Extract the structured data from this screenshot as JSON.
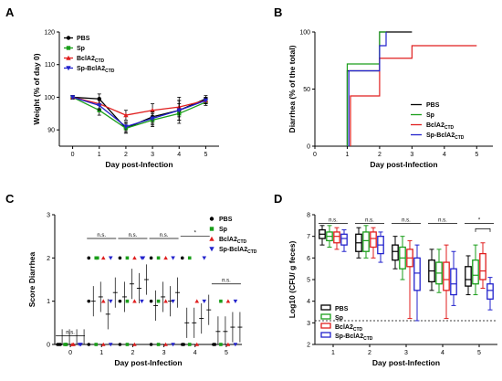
{
  "colors": {
    "PBS": "#000000",
    "Sp": "#1a9e1a",
    "BclA2CTD": "#e01e1e",
    "Sp-BclA2CTD": "#2222cc"
  },
  "legend": [
    {
      "key": "PBS",
      "label": "PBS",
      "sub": ""
    },
    {
      "key": "Sp",
      "label": "Sp",
      "sub": ""
    },
    {
      "key": "BclA2CTD",
      "label": "BclA2",
      "sub": "CTD"
    },
    {
      "key": "Sp-BclA2CTD",
      "label": "Sp-BclA2",
      "sub": "CTD"
    }
  ],
  "panels": {
    "A": {
      "letter": "A"
    },
    "B": {
      "letter": "B"
    },
    "C": {
      "letter": "C"
    },
    "D": {
      "letter": "D"
    }
  },
  "annotations": {
    "ns": "n.s.",
    "star": "*",
    "d_lod": "dashed line = detection limit"
  },
  "chart_data": [
    {
      "panel": "A",
      "type": "line",
      "xlabel": "Day post-Infection",
      "ylabel": "Weight (% of day 0)",
      "x": [
        0,
        1,
        2,
        3,
        4,
        5
      ],
      "xticks": [
        "0",
        "1",
        "2",
        "3",
        "4",
        "5"
      ],
      "ylim": [
        85,
        120
      ],
      "yticks": [
        "90",
        "100",
        "110",
        "120"
      ],
      "series": [
        {
          "name": "PBS",
          "values": [
            100,
            99.5,
            90.5,
            94,
            96,
            99.5
          ],
          "err": [
            0.5,
            1.5,
            1.5,
            2,
            3,
            1
          ]
        },
        {
          "name": "Sp",
          "values": [
            100,
            96,
            90.5,
            93,
            95,
            98.5
          ],
          "err": [
            0.5,
            1.5,
            1.5,
            2,
            3,
            1
          ]
        },
        {
          "name": "BclA2CTD",
          "values": [
            100,
            98,
            94.5,
            96,
            97,
            99
          ],
          "err": [
            0.5,
            1.5,
            1.5,
            2,
            3,
            1
          ]
        },
        {
          "name": "Sp-BclA2CTD",
          "values": [
            100,
            97.5,
            91,
            93.5,
            96,
            99
          ],
          "err": [
            0.5,
            1.5,
            1.5,
            2,
            3,
            1
          ]
        }
      ]
    },
    {
      "panel": "B",
      "type": "line",
      "xlabel": "Day post-Infection",
      "ylabel": "Diarrhea (% of the total)",
      "x": [
        0,
        1,
        2,
        3,
        4,
        5
      ],
      "xticks": [
        "0",
        "1",
        "2",
        "3",
        "4",
        "5"
      ],
      "ylim": [
        0,
        100
      ],
      "yticks": [
        "0",
        "50",
        "100"
      ],
      "series": [
        {
          "name": "PBS",
          "steps": [
            [
              1.0,
              0
            ],
            [
              1.0,
              66
            ],
            [
              2.0,
              66
            ],
            [
              2.0,
              100
            ],
            [
              3.0,
              100
            ]
          ]
        },
        {
          "name": "Sp",
          "steps": [
            [
              1.0,
              0
            ],
            [
              1.0,
              72
            ],
            [
              2.0,
              72
            ],
            [
              2.0,
              100
            ],
            [
              2.2,
              100
            ]
          ]
        },
        {
          "name": "BclA2CTD",
          "steps": [
            [
              1.1,
              0
            ],
            [
              1.1,
              44
            ],
            [
              2.0,
              44
            ],
            [
              2.0,
              77
            ],
            [
              3.0,
              77
            ],
            [
              3.0,
              88
            ],
            [
              5.0,
              88
            ]
          ]
        },
        {
          "name": "Sp-BclA2CTD",
          "steps": [
            [
              1.05,
              0
            ],
            [
              1.05,
              66
            ],
            [
              2.0,
              66
            ],
            [
              2.0,
              88
            ],
            [
              2.2,
              88
            ],
            [
              2.2,
              100
            ]
          ]
        }
      ]
    },
    {
      "panel": "C",
      "type": "scatter",
      "xlabel": "Day post-Infection",
      "ylabel": "Score Diarrhea",
      "x": [
        0,
        1,
        2,
        3,
        4,
        5
      ],
      "xticks": [
        "0",
        "1",
        "2",
        "3",
        "4",
        "5"
      ],
      "ylim": [
        0,
        3
      ],
      "yticks": [
        "0",
        "1",
        "2",
        "3"
      ],
      "significance": [
        "n.s.",
        "n.s.",
        "n.s.",
        "n.s.",
        "*",
        "n.s."
      ],
      "series": [
        {
          "name": "PBS",
          "points": [
            [
              0,
              0
            ],
            [
              0,
              0
            ],
            [
              0,
              0
            ],
            [
              1,
              2
            ],
            [
              1,
              1
            ],
            [
              1,
              0
            ],
            [
              2,
              2
            ],
            [
              2,
              1
            ],
            [
              2,
              0
            ],
            [
              3,
              2
            ],
            [
              3,
              1
            ],
            [
              3,
              0
            ],
            [
              4,
              2
            ],
            [
              4,
              0
            ],
            [
              4,
              0
            ],
            [
              5,
              0
            ],
            [
              5,
              0
            ]
          ]
        },
        {
          "name": "Sp",
          "points": [
            [
              0,
              0
            ],
            [
              0,
              0
            ],
            [
              1,
              2
            ],
            [
              1,
              2
            ],
            [
              1,
              0
            ],
            [
              2,
              2
            ],
            [
              2,
              1
            ],
            [
              2,
              0
            ],
            [
              3,
              2
            ],
            [
              3,
              1
            ],
            [
              3,
              0
            ],
            [
              4,
              2
            ],
            [
              4,
              0
            ],
            [
              5,
              1
            ],
            [
              5,
              0
            ]
          ]
        },
        {
          "name": "BclA2CTD",
          "points": [
            [
              0,
              0
            ],
            [
              0,
              0
            ],
            [
              1,
              2
            ],
            [
              1,
              1
            ],
            [
              1,
              0
            ],
            [
              2,
              2
            ],
            [
              2,
              1
            ],
            [
              2,
              0
            ],
            [
              3,
              2
            ],
            [
              3,
              1
            ],
            [
              3,
              0
            ],
            [
              4,
              1
            ],
            [
              4,
              0
            ],
            [
              5,
              1
            ],
            [
              5,
              0
            ]
          ]
        },
        {
          "name": "Sp-BclA2CTD",
          "points": [
            [
              0,
              0
            ],
            [
              0,
              0
            ],
            [
              1,
              2
            ],
            [
              1,
              1
            ],
            [
              1,
              0
            ],
            [
              2,
              2
            ],
            [
              2,
              2
            ],
            [
              2,
              1
            ],
            [
              3,
              2
            ],
            [
              3,
              1
            ],
            [
              3,
              0
            ],
            [
              4,
              2
            ],
            [
              4,
              1
            ],
            [
              5,
              1
            ],
            [
              5,
              0
            ]
          ]
        }
      ],
      "means": {
        "PBS": [
          [
            0,
            0
          ],
          [
            1,
            1.0
          ],
          [
            2,
            1.1
          ],
          [
            3,
            0.9
          ],
          [
            4,
            0.5
          ],
          [
            5,
            0.3
          ]
        ],
        "Sp": [
          [
            0,
            0
          ],
          [
            1,
            1.1
          ],
          [
            2,
            1.4
          ],
          [
            3,
            1.1
          ],
          [
            4,
            0.5
          ],
          [
            5,
            0.3
          ]
        ],
        "BclA2CTD": [
          [
            0,
            0
          ],
          [
            1,
            0.7
          ],
          [
            2,
            1.3
          ],
          [
            3,
            1.0
          ],
          [
            4,
            0.6
          ],
          [
            5,
            0.4
          ]
        ],
        "Sp-BclA2CTD": [
          [
            0,
            0
          ],
          [
            1,
            1.2
          ],
          [
            2,
            1.5
          ],
          [
            3,
            1.2
          ],
          [
            4,
            0.8
          ],
          [
            5,
            0.4
          ]
        ]
      }
    },
    {
      "panel": "D",
      "type": "box",
      "xlabel": "Day post-Infection",
      "ylabel": "Log10 (CFU/ g feces)",
      "x": [
        1,
        2,
        3,
        4,
        5
      ],
      "xticks": [
        "1",
        "2",
        "3",
        "4",
        "5"
      ],
      "ylim": [
        2,
        8
      ],
      "yticks": [
        "2",
        "3",
        "4",
        "5",
        "6",
        "7",
        "8"
      ],
      "detection_limit": 3.1,
      "significance": [
        "n.s.",
        "n.s.",
        "n.s.",
        "n.s.",
        "*"
      ],
      "series": [
        {
          "name": "PBS",
          "boxes": [
            [
              6.6,
              6.9,
              7.1,
              7.3,
              7.5
            ],
            [
              6.0,
              6.3,
              6.7,
              7.1,
              7.4
            ],
            [
              5.5,
              5.9,
              6.3,
              6.6,
              7.0
            ],
            [
              4.5,
              4.9,
              5.4,
              5.9,
              6.4
            ],
            [
              4.3,
              4.7,
              5.0,
              5.6,
              6.1
            ]
          ]
        },
        {
          "name": "Sp",
          "boxes": [
            [
              6.5,
              6.8,
              7.0,
              7.2,
              7.5
            ],
            [
              6.0,
              6.3,
              6.8,
              7.2,
              7.5
            ],
            [
              5.0,
              5.5,
              6.0,
              6.5,
              7.0
            ],
            [
              4.4,
              4.8,
              5.3,
              5.8,
              6.4
            ],
            [
              4.3,
              4.8,
              5.2,
              5.9,
              6.6
            ]
          ]
        },
        {
          "name": "BclA2CTD",
          "boxes": [
            [
              6.4,
              6.7,
              7.0,
              7.2,
              7.4
            ],
            [
              6.0,
              6.5,
              6.9,
              7.2,
              7.4
            ],
            [
              3.2,
              5.6,
              6.0,
              6.4,
              6.8
            ],
            [
              3.2,
              4.5,
              5.0,
              5.8,
              6.6
            ],
            [
              4.6,
              5.0,
              5.4,
              6.2,
              6.7
            ]
          ]
        },
        {
          "name": "Sp-BclA2CTD",
          "boxes": [
            [
              6.3,
              6.6,
              6.9,
              7.1,
              7.3
            ],
            [
              5.8,
              6.2,
              6.6,
              7.0,
              7.2
            ],
            [
              3.1,
              4.5,
              5.3,
              6.0,
              6.6
            ],
            [
              3.8,
              4.3,
              4.8,
              5.5,
              6.3
            ],
            [
              3.6,
              4.1,
              4.5,
              4.8,
              5.1
            ]
          ]
        }
      ]
    }
  ]
}
